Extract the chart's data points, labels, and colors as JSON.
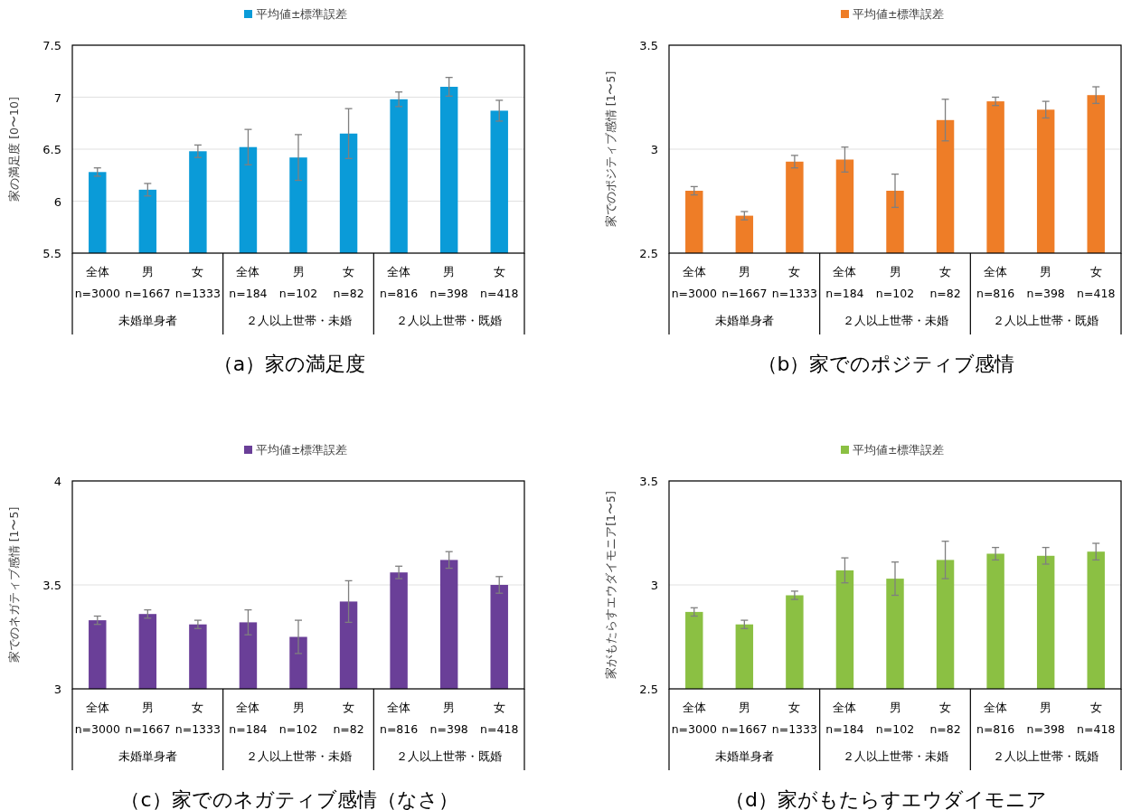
{
  "chart_data": [
    {
      "type": "bar",
      "title": "（a）家の満足度",
      "ylabel": "家の満足度 [0〜10]",
      "categories": [
        "全体\nn=3000",
        "男\nn=1667",
        "女\nn=1333",
        "全体\nn=184",
        "男\nn=102",
        "女\nn=82",
        "全体\nn=816",
        "男\nn=398",
        "女\nn=418"
      ],
      "series": [
        {
          "name": "平均値±標準誤差",
          "color": "#0a9bd8",
          "values": [
            6.28,
            6.11,
            6.48,
            6.52,
            6.42,
            6.65,
            6.98,
            7.1,
            6.87
          ],
          "errors": [
            0.04,
            0.06,
            0.06,
            0.17,
            0.22,
            0.24,
            0.07,
            0.09,
            0.1
          ]
        }
      ],
      "ylim": [
        5.5,
        7.5
      ],
      "yticks": [
        5.5,
        6,
        6.5,
        7,
        7.5
      ],
      "grid": "y",
      "legend": "top",
      "annotations": [
        "未婚単身者",
        "２人以上世帯・未婚",
        "２人以上世帯・既婚"
      ]
    },
    {
      "type": "bar",
      "title": "（b）家でのポジティブ感情",
      "ylabel": "家でのポジティブ感情 [1〜5]",
      "categories": [
        "全体\nn=3000",
        "男\nn=1667",
        "女\nn=1333",
        "全体\nn=184",
        "男\nn=102",
        "女\nn=82",
        "全体\nn=816",
        "男\nn=398",
        "女\nn=418"
      ],
      "series": [
        {
          "name": "平均値±標準誤差",
          "color": "#ee7d27",
          "values": [
            2.8,
            2.68,
            2.94,
            2.95,
            2.8,
            3.14,
            3.23,
            3.19,
            3.26
          ],
          "errors": [
            0.02,
            0.02,
            0.03,
            0.06,
            0.08,
            0.1,
            0.02,
            0.04,
            0.04
          ]
        }
      ],
      "ylim": [
        2.5,
        3.5
      ],
      "yticks": [
        2.5,
        3,
        3.5
      ],
      "grid": "y",
      "legend": "top",
      "annotations": [
        "未婚単身者",
        "２人以上世帯・未婚",
        "２人以上世帯・既婚"
      ]
    },
    {
      "type": "bar",
      "title": "（c）家でのネガティブ感情（なさ）",
      "ylabel": "家でのネガティブ感情 [1〜5]",
      "categories": [
        "全体\nn=3000",
        "男\nn=1667",
        "女\nn=1333",
        "全体\nn=184",
        "男\nn=102",
        "女\nn=82",
        "全体\nn=816",
        "男\nn=398",
        "女\nn=418"
      ],
      "series": [
        {
          "name": "平均値±標準誤差",
          "color": "#6a3f98",
          "values": [
            3.33,
            3.36,
            3.31,
            3.32,
            3.25,
            3.42,
            3.56,
            3.62,
            3.5
          ],
          "errors": [
            0.02,
            0.02,
            0.02,
            0.06,
            0.08,
            0.1,
            0.03,
            0.04,
            0.04
          ]
        }
      ],
      "ylim": [
        3,
        4
      ],
      "yticks": [
        3,
        3.5,
        4
      ],
      "grid": "y",
      "legend": "top",
      "annotations": [
        "未婚単身者",
        "２人以上世帯・未婚",
        "２人以上世帯・既婚"
      ]
    },
    {
      "type": "bar",
      "title": "（d）家がもたらすエウダイモニア",
      "ylabel": "家がもたらすエウダイモニア[1〜5]",
      "categories": [
        "全体\nn=3000",
        "男\nn=1667",
        "女\nn=1333",
        "全体\nn=184",
        "男\nn=102",
        "女\nn=82",
        "全体\nn=816",
        "男\nn=398",
        "女\nn=418"
      ],
      "series": [
        {
          "name": "平均値±標準誤差",
          "color": "#8bc043",
          "values": [
            2.87,
            2.81,
            2.95,
            3.07,
            3.03,
            3.12,
            3.15,
            3.14,
            3.16
          ],
          "errors": [
            0.02,
            0.02,
            0.02,
            0.06,
            0.08,
            0.09,
            0.03,
            0.04,
            0.04
          ]
        }
      ],
      "ylim": [
        2.5,
        3.5
      ],
      "yticks": [
        2.5,
        3,
        3.5
      ],
      "grid": "y",
      "legend": "top",
      "annotations": [
        "未婚単身者",
        "２人以上世帯・未婚",
        "２人以上世帯・既婚"
      ]
    }
  ]
}
